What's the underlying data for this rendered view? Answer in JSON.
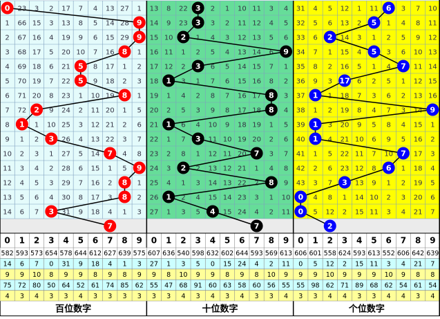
{
  "panels": [
    {
      "title": "百位数字",
      "color": "#e4fbfb",
      "circle": "#ff0000",
      "rows": [
        [
          0,
          23,
          3,
          2,
          17,
          7,
          4,
          13,
          27,
          1
        ],
        [
          1,
          66,
          15,
          3,
          13,
          8,
          5,
          14,
          28,
          9
        ],
        [
          2,
          67,
          16,
          4,
          19,
          9,
          6,
          15,
          29,
          9
        ],
        [
          3,
          68,
          17,
          5,
          20,
          10,
          7,
          16,
          8,
          1
        ],
        [
          4,
          69,
          18,
          6,
          21,
          5,
          8,
          17,
          1,
          2
        ],
        [
          5,
          70,
          19,
          7,
          22,
          5,
          9,
          18,
          2,
          3
        ],
        [
          6,
          71,
          20,
          8,
          23,
          1,
          10,
          19,
          8,
          1
        ],
        [
          7,
          72,
          2,
          9,
          24,
          2,
          11,
          20,
          1,
          5
        ],
        [
          8,
          1,
          1,
          10,
          25,
          3,
          12,
          21,
          2,
          6
        ],
        [
          9,
          1,
          2,
          3,
          26,
          4,
          13,
          22,
          3,
          7
        ],
        [
          10,
          2,
          3,
          1,
          27,
          5,
          14,
          7,
          4,
          8
        ],
        [
          11,
          3,
          4,
          2,
          28,
          6,
          15,
          1,
          5,
          9
        ],
        [
          12,
          4,
          5,
          3,
          29,
          7,
          16,
          2,
          8,
          1
        ],
        [
          13,
          5,
          6,
          4,
          30,
          8,
          17,
          3,
          8,
          2
        ],
        [
          14,
          6,
          7,
          3,
          31,
          9,
          18,
          4,
          1,
          3
        ]
      ],
      "hits": [
        0,
        9,
        9,
        8,
        5,
        5,
        8,
        2,
        1,
        3,
        7,
        9,
        8,
        8,
        3
      ],
      "next": 7
    },
    {
      "title": "十位数字",
      "color": "#66dd99",
      "circle": "#000000",
      "rows": [
        [
          13,
          8,
          22,
          3,
          2,
          1,
          10,
          11,
          3,
          4
        ],
        [
          14,
          9,
          23,
          3,
          3,
          2,
          11,
          12,
          4,
          5
        ],
        [
          15,
          10,
          2,
          1,
          4,
          3,
          12,
          13,
          5,
          6
        ],
        [
          16,
          11,
          1,
          2,
          5,
          4,
          13,
          14,
          6,
          9
        ],
        [
          17,
          12,
          2,
          3,
          6,
          5,
          14,
          15,
          7,
          1
        ],
        [
          18,
          1,
          3,
          1,
          7,
          6,
          15,
          16,
          8,
          2
        ],
        [
          19,
          1,
          4,
          2,
          8,
          7,
          16,
          17,
          8,
          3
        ],
        [
          20,
          2,
          5,
          3,
          9,
          8,
          17,
          18,
          8,
          4
        ],
        [
          21,
          1,
          6,
          4,
          10,
          9,
          18,
          19,
          1,
          5
        ],
        [
          22,
          1,
          7,
          3,
          11,
          10,
          19,
          20,
          2,
          6
        ],
        [
          23,
          2,
          8,
          1,
          12,
          11,
          20,
          7,
          3,
          7
        ],
        [
          24,
          3,
          2,
          2,
          13,
          12,
          21,
          1,
          4,
          8
        ],
        [
          25,
          4,
          1,
          3,
          14,
          13,
          22,
          2,
          8,
          9
        ],
        [
          26,
          1,
          2,
          4,
          15,
          14,
          23,
          3,
          1,
          10
        ],
        [
          27,
          1,
          3,
          5,
          4,
          15,
          24,
          4,
          2,
          11
        ]
      ],
      "hits": [
        3,
        3,
        2,
        9,
        3,
        1,
        8,
        8,
        1,
        3,
        7,
        2,
        8,
        1,
        4
      ],
      "next": 7
    },
    {
      "title": "个位数字",
      "color": "#ffff00",
      "circle": "#0000ff",
      "rows": [
        [
          31,
          4,
          5,
          12,
          1,
          11,
          6,
          3,
          7,
          10
        ],
        [
          32,
          5,
          6,
          13,
          2,
          5,
          1,
          4,
          8,
          11
        ],
        [
          33,
          6,
          2,
          14,
          3,
          1,
          2,
          5,
          9,
          12
        ],
        [
          34,
          7,
          1,
          15,
          4,
          5,
          3,
          6,
          10,
          13
        ],
        [
          35,
          8,
          2,
          16,
          5,
          1,
          4,
          7,
          11,
          14
        ],
        [
          36,
          9,
          3,
          17,
          6,
          2,
          5,
          1,
          12,
          15
        ],
        [
          37,
          1,
          1,
          18,
          7,
          3,
          6,
          2,
          13,
          16
        ],
        [
          38,
          1,
          2,
          19,
          8,
          4,
          7,
          3,
          14,
          9
        ],
        [
          39,
          1,
          3,
          20,
          9,
          5,
          8,
          4,
          15,
          1
        ],
        [
          40,
          1,
          4,
          21,
          10,
          6,
          9,
          5,
          16,
          2
        ],
        [
          41,
          1,
          5,
          22,
          11,
          7,
          10,
          7,
          17,
          3
        ],
        [
          42,
          2,
          6,
          23,
          12,
          8,
          6,
          1,
          18,
          4
        ],
        [
          43,
          3,
          7,
          3,
          13,
          9,
          1,
          2,
          19,
          5
        ],
        [
          0,
          4,
          8,
          1,
          14,
          10,
          2,
          3,
          20,
          6
        ],
        [
          0,
          5,
          12,
          2,
          15,
          11,
          3,
          4,
          21,
          7
        ]
      ],
      "hits": [
        6,
        5,
        2,
        5,
        7,
        3,
        1,
        9,
        1,
        1,
        7,
        6,
        3,
        0,
        0
      ],
      "next": 2
    }
  ],
  "digits": [
    0,
    1,
    2,
    3,
    4,
    5,
    6,
    7,
    8,
    9
  ],
  "stats": [
    {
      "color": "#ffffff",
      "values": [
        582,
        593,
        573,
        654,
        578,
        644,
        612,
        627,
        639,
        575,
        607,
        636,
        540,
        598,
        632,
        602,
        644,
        593,
        569,
        613,
        606,
        601,
        558,
        624,
        593,
        613,
        552,
        606,
        642,
        639
      ]
    },
    {
      "color": "#ccffff",
      "values": [
        14,
        6,
        7,
        0,
        31,
        9,
        18,
        4,
        1,
        3,
        27,
        1,
        3,
        5,
        0,
        15,
        24,
        4,
        2,
        11,
        0,
        5,
        12,
        2,
        15,
        11,
        3,
        4,
        21,
        7
      ]
    },
    {
      "color": "#ffff99",
      "values": [
        9,
        9,
        10,
        8,
        9,
        9,
        8,
        9,
        8,
        9,
        9,
        8,
        10,
        9,
        9,
        8,
        9,
        8,
        10,
        9,
        9,
        9,
        10,
        9,
        9,
        9,
        10,
        9,
        8,
        8
      ]
    },
    {
      "color": "#ccffff",
      "values": [
        75,
        72,
        80,
        50,
        64,
        52,
        61,
        74,
        85,
        62,
        55,
        47,
        68,
        91,
        60,
        63,
        58,
        60,
        56,
        55,
        55,
        98,
        62,
        71,
        89,
        68,
        62,
        54,
        61,
        54
      ]
    },
    {
      "color": "#ffff99",
      "values": [
        4,
        3,
        4,
        3,
        3,
        4,
        3,
        3,
        3,
        3,
        3,
        3,
        4,
        3,
        4,
        3,
        4,
        3,
        3,
        4,
        3,
        3,
        4,
        4,
        3,
        3,
        4,
        4,
        3,
        4
      ]
    }
  ]
}
